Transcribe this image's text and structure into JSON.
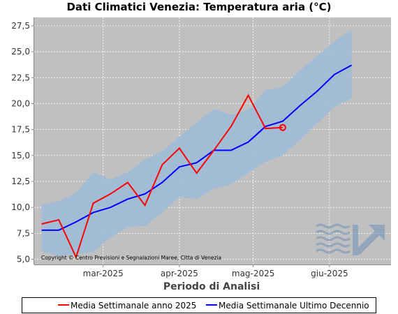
{
  "chart_data": {
    "type": "line",
    "title": "Dati Climatici Venezia: Temperatura aria (°C)",
    "xlabel": "Periodo di Analisi",
    "ylabel": "",
    "x_dates": [
      "2025-02-04",
      "2025-02-11",
      "2025-02-18",
      "2025-02-25",
      "2025-03-04",
      "2025-03-11",
      "2025-03-18",
      "2025-03-25",
      "2025-04-01",
      "2025-04-08",
      "2025-04-15",
      "2025-04-22",
      "2025-04-29",
      "2025-05-06",
      "2025-05-13",
      "2025-05-20",
      "2025-05-27",
      "2025-06-03",
      "2025-06-10",
      "2025-06-17"
    ],
    "x_ticks": [
      "mar-2025",
      "apr-2025",
      "mag-2025",
      "giu-2025"
    ],
    "y_ticks": [
      "5,0",
      "7,5",
      "10,0",
      "12,5",
      "15,0",
      "17,5",
      "20,0",
      "22,5",
      "25,0",
      "27,5"
    ],
    "ylim": [
      4.5,
      28.3
    ],
    "grid": true,
    "series": [
      {
        "name": "Media Settimanale anno 2025",
        "color": "#ff0000",
        "x": [
          "2025-02-04",
          "2025-02-11",
          "2025-02-18",
          "2025-02-25",
          "2025-03-04",
          "2025-03-11",
          "2025-03-18",
          "2025-03-25",
          "2025-04-01",
          "2025-04-08",
          "2025-04-15",
          "2025-04-22",
          "2025-04-29",
          "2025-05-06",
          "2025-05-13"
        ],
        "values": [
          8.4,
          8.8,
          5.2,
          10.4,
          11.3,
          12.4,
          10.2,
          14.1,
          15.7,
          13.3,
          15.5,
          17.8,
          20.8,
          17.6,
          17.7
        ]
      },
      {
        "name": "Media Settimanale Ultimo Decennio",
        "color": "#0000ff",
        "values": [
          7.8,
          7.8,
          8.6,
          9.5,
          10.0,
          10.8,
          11.3,
          12.4,
          13.9,
          14.3,
          15.5,
          15.5,
          16.3,
          17.8,
          18.3,
          19.8,
          21.2,
          22.8,
          23.7,
          null
        ]
      }
    ],
    "band": {
      "color": "#9ebbd9",
      "upper": [
        10.3,
        10.6,
        11.4,
        13.4,
        12.7,
        13.4,
        14.6,
        15.4,
        16.8,
        18.2,
        19.5,
        18.9,
        19.4,
        21.3,
        21.6,
        23.2,
        24.6,
        26.0,
        27.1
      ],
      "lower": [
        5.8,
        5.3,
        5.5,
        5.7,
        7.1,
        8.1,
        8.2,
        9.5,
        11.0,
        10.8,
        11.8,
        12.2,
        13.3,
        14.4,
        15.0,
        16.5,
        18.1,
        19.7,
        20.5
      ]
    },
    "marker": {
      "x": "2025-05-13",
      "y": 17.7,
      "color": "#ff0000"
    },
    "copyright": "Copyright © Centro Previsioni  e Segnalazioni Maree, Citta di Venezia",
    "legend_position": "bottom",
    "colors": {
      "plot_bg": "#c0c0c0",
      "grid": "#ffffff"
    }
  }
}
